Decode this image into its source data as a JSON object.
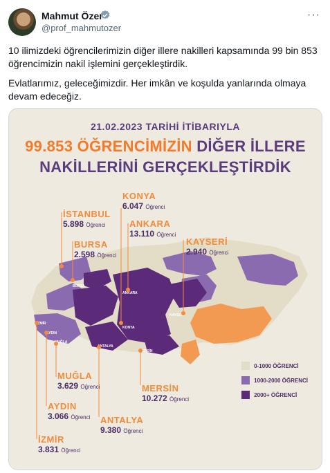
{
  "author": {
    "name": "Mahmut Özer",
    "handle": "@prof_mahmutozer"
  },
  "tweet": {
    "text1": "10 ilimizdeki öğrencilerimizin diğer illere nakilleri kapsamında 99 bin 853 öğrencimizin nakil işlemini gerçekleştirdik.",
    "text2": "Evlatlarımız, geleceğimizdir. Her imkân ve koşulda yanlarında olmaya devam edeceğiz."
  },
  "infographic": {
    "date_line": "21.02.2023 TARİHİ İTİBARIYLA",
    "headline_number": "99.853",
    "headline_word": "ÖĞRENCİMİZİN",
    "headline_rest": "DİĞER İLLERE",
    "headline_line2": "NAKİLLERİNİ GERÇEKLEŞTİRDİK",
    "unit": "Öğrenci",
    "cities": [
      {
        "name": "KONYA",
        "value": "6.047"
      },
      {
        "name": "İSTANBUL",
        "value": "5.898"
      },
      {
        "name": "ANKARA",
        "value": "13.110"
      },
      {
        "name": "BURSA",
        "value": "2.598"
      },
      {
        "name": "KAYSERİ",
        "value": "2.940"
      },
      {
        "name": "MUĞLA",
        "value": "3.629"
      },
      {
        "name": "MERSİN",
        "value": "10.272"
      },
      {
        "name": "AYDIN",
        "value": "3.066"
      },
      {
        "name": "ANTALYA",
        "value": "9.380"
      },
      {
        "name": "İZMİR",
        "value": "3.831"
      }
    ],
    "map_labels": [
      "BURSA",
      "İZMİR",
      "AYDIN",
      "MUĞLA",
      "ANTALYA",
      "KONYA",
      "ANKARA",
      "KAYSERİ",
      "MERSİN"
    ],
    "legend": [
      {
        "label": "0-1000 ÖĞRENCİ",
        "color": "#e3dcc6"
      },
      {
        "label": "1000-2000 ÖĞRENCİ",
        "color": "#8a6bb0"
      },
      {
        "label": "2000+ ÖĞRENCİ",
        "color": "#5b2a78"
      }
    ],
    "colors": {
      "orange": "#f39a52",
      "purple_dark": "#5b2a78",
      "purple_mid": "#8a6bb0",
      "beige": "#e3dcc6"
    }
  }
}
